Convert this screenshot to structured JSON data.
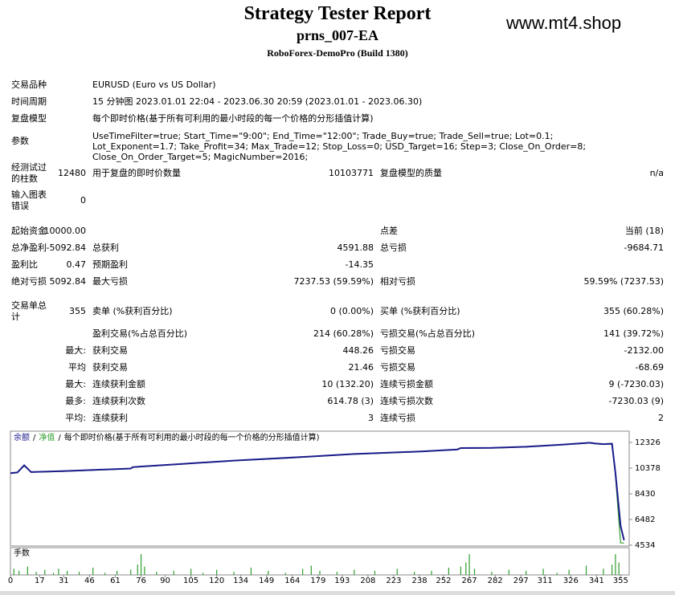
{
  "header": {
    "title": "Strategy Tester Report",
    "expert": "prns_007-EA",
    "server": "RoboForex-DemoPro (Build 1380)",
    "watermark": "www.mt4.shop"
  },
  "info": [
    {
      "label": "交易品种",
      "value": "EURUSD (Euro vs US Dollar)"
    },
    {
      "label": "时间周期",
      "value": "15 分钟图 2023.01.01 22:04 - 2023.06.30 20:59 (2023.01.01 - 2023.06.30)"
    },
    {
      "label": "复盘模型",
      "value": "每个即时价格(基于所有可利用的最小时段的每一个价格的分形插值计算)"
    },
    {
      "label": "参数",
      "value": "UseTimeFilter=true; Start_Time=\"9:00\"; End_Time=\"12:00\"; Trade_Buy=true; Trade_Sell=true; Lot=0.1; Lot_Exponent=1.7; Take_Profit=34; Max_Trade=12; Stop_Loss=0; USD_Target=16; Step=3; Close_On_Order=8; Close_On_Order_Target=5; MagicNumber=2016;"
    }
  ],
  "rows": [
    {
      "l1": "经测试过的柱数",
      "v1": "12480",
      "l2": "用于复盘的即时价数量",
      "v2": "10103771",
      "l3": "复盘模型的质量",
      "v3": "n/a"
    },
    {
      "l1": "输入图表错误",
      "v1": "0"
    },
    {
      "l1": "起始资金",
      "v1": "10000.00",
      "l3": "点差",
      "v3": "当前 (18)"
    },
    {
      "l1": "总净盈利",
      "v1": "-5092.84",
      "l2": "总获利",
      "v2": "4591.88",
      "l3": "总亏损",
      "v3": "-9684.71"
    },
    {
      "l1": "盈利比",
      "v1": "0.47",
      "l2": "预期盈利",
      "v2": "-14.35"
    },
    {
      "l1": "绝对亏损",
      "v1": "5092.84",
      "l2": "最大亏损",
      "v2": "7237.53 (59.59%)",
      "l3": "相对亏损",
      "v3": "59.59% (7237.53)"
    },
    {
      "l1": "交易单总计",
      "v1": "355",
      "l2": "卖单 (%获利百分比)",
      "v2": "0 (0.00%)",
      "l3": "买单 (%获利百分比)",
      "v3": "355 (60.28%)"
    },
    {
      "l2": "盈利交易(%占总百分比)",
      "v2": "214 (60.28%)",
      "l3": "亏损交易(%占总百分比)",
      "v3": "141 (39.72%)"
    },
    {
      "v1": "最大:",
      "l2": "获利交易",
      "v2": "448.26",
      "l3": "亏损交易",
      "v3": "-2132.00"
    },
    {
      "v1": "平均",
      "l2": "获利交易",
      "v2": "21.46",
      "l3": "亏损交易",
      "v3": "-68.69"
    },
    {
      "v1": "最大:",
      "l2": "连续获利金额",
      "v2": "10 (132.20)",
      "l3": "连续亏损金额",
      "v3": "9 (-7230.03)"
    },
    {
      "v1": "最多:",
      "l2": "连续获利次数",
      "v2": "614.78 (3)",
      "l3": "连续亏损次数",
      "v3": "-7230.03 (9)"
    },
    {
      "v1": "平均:",
      "l2": "连续获利",
      "v2": "3",
      "l3": "连续亏损",
      "v3": "2"
    }
  ],
  "chart_data": {
    "type": "line",
    "legend_separator": "/",
    "model_label": "每个即时价格(基于所有可利用的最小时段的每一个价格的分形插值计算)",
    "x": [
      0,
      4,
      8,
      12,
      30,
      50,
      70,
      71,
      76,
      100,
      130,
      160,
      180,
      200,
      220,
      240,
      260,
      262,
      280,
      300,
      320,
      337,
      340,
      345,
      350,
      352,
      355,
      357
    ],
    "series": [
      {
        "name": "余额",
        "color": "#1c1c8c",
        "values": [
          10000,
          10050,
          10600,
          10080,
          10150,
          10250,
          10350,
          10450,
          10500,
          10700,
          10950,
          11150,
          11300,
          11450,
          11550,
          11650,
          11800,
          11900,
          11920,
          12000,
          12150,
          12300,
          12250,
          12200,
          12230,
          10000,
          6000,
          4907
        ]
      },
      {
        "name": "净值",
        "color": "#2e9e2e",
        "values": [
          9980,
          10030,
          10550,
          10060,
          10130,
          10230,
          10330,
          10430,
          10480,
          10680,
          10930,
          11130,
          11280,
          11430,
          11530,
          11630,
          11780,
          11880,
          11900,
          11980,
          12130,
          12280,
          12230,
          12180,
          12200,
          9800,
          4700,
          4700
        ]
      }
    ],
    "xlim": [
      0,
      360
    ],
    "xticks": [
      0,
      17,
      31,
      46,
      61,
      76,
      90,
      105,
      120,
      134,
      149,
      164,
      179,
      193,
      208,
      223,
      238,
      252,
      267,
      282,
      297,
      311,
      326,
      341,
      355
    ],
    "ylim": [
      4470,
      13180
    ],
    "yticks": [
      12326,
      10378,
      8430,
      6482,
      4534
    ],
    "volume": {
      "label": "手数",
      "color": "#2e9e2e",
      "ylim": [
        0,
        1.2
      ],
      "x": [
        2,
        5,
        10,
        15,
        20,
        25,
        28,
        33,
        40,
        48,
        55,
        62,
        70,
        74,
        76,
        78,
        85,
        95,
        105,
        112,
        120,
        130,
        140,
        150,
        160,
        170,
        175,
        180,
        190,
        200,
        212,
        225,
        235,
        245,
        255,
        262,
        265,
        267,
        270,
        280,
        290,
        300,
        310,
        318,
        325,
        335,
        345,
        350,
        352,
        354
      ],
      "values": [
        0.3,
        0.2,
        0.4,
        0.15,
        0.25,
        0.1,
        0.3,
        0.2,
        0.15,
        0.35,
        0.1,
        0.2,
        0.25,
        0.5,
        1.0,
        0.4,
        0.15,
        0.2,
        0.3,
        0.1,
        0.25,
        0.15,
        0.35,
        0.2,
        0.1,
        0.3,
        0.45,
        0.2,
        0.15,
        0.25,
        0.2,
        0.3,
        0.15,
        0.2,
        0.35,
        0.4,
        0.6,
        1.0,
        0.3,
        0.15,
        0.25,
        0.2,
        0.3,
        0.1,
        0.25,
        0.45,
        0.3,
        0.5,
        1.0,
        0.6
      ]
    }
  }
}
